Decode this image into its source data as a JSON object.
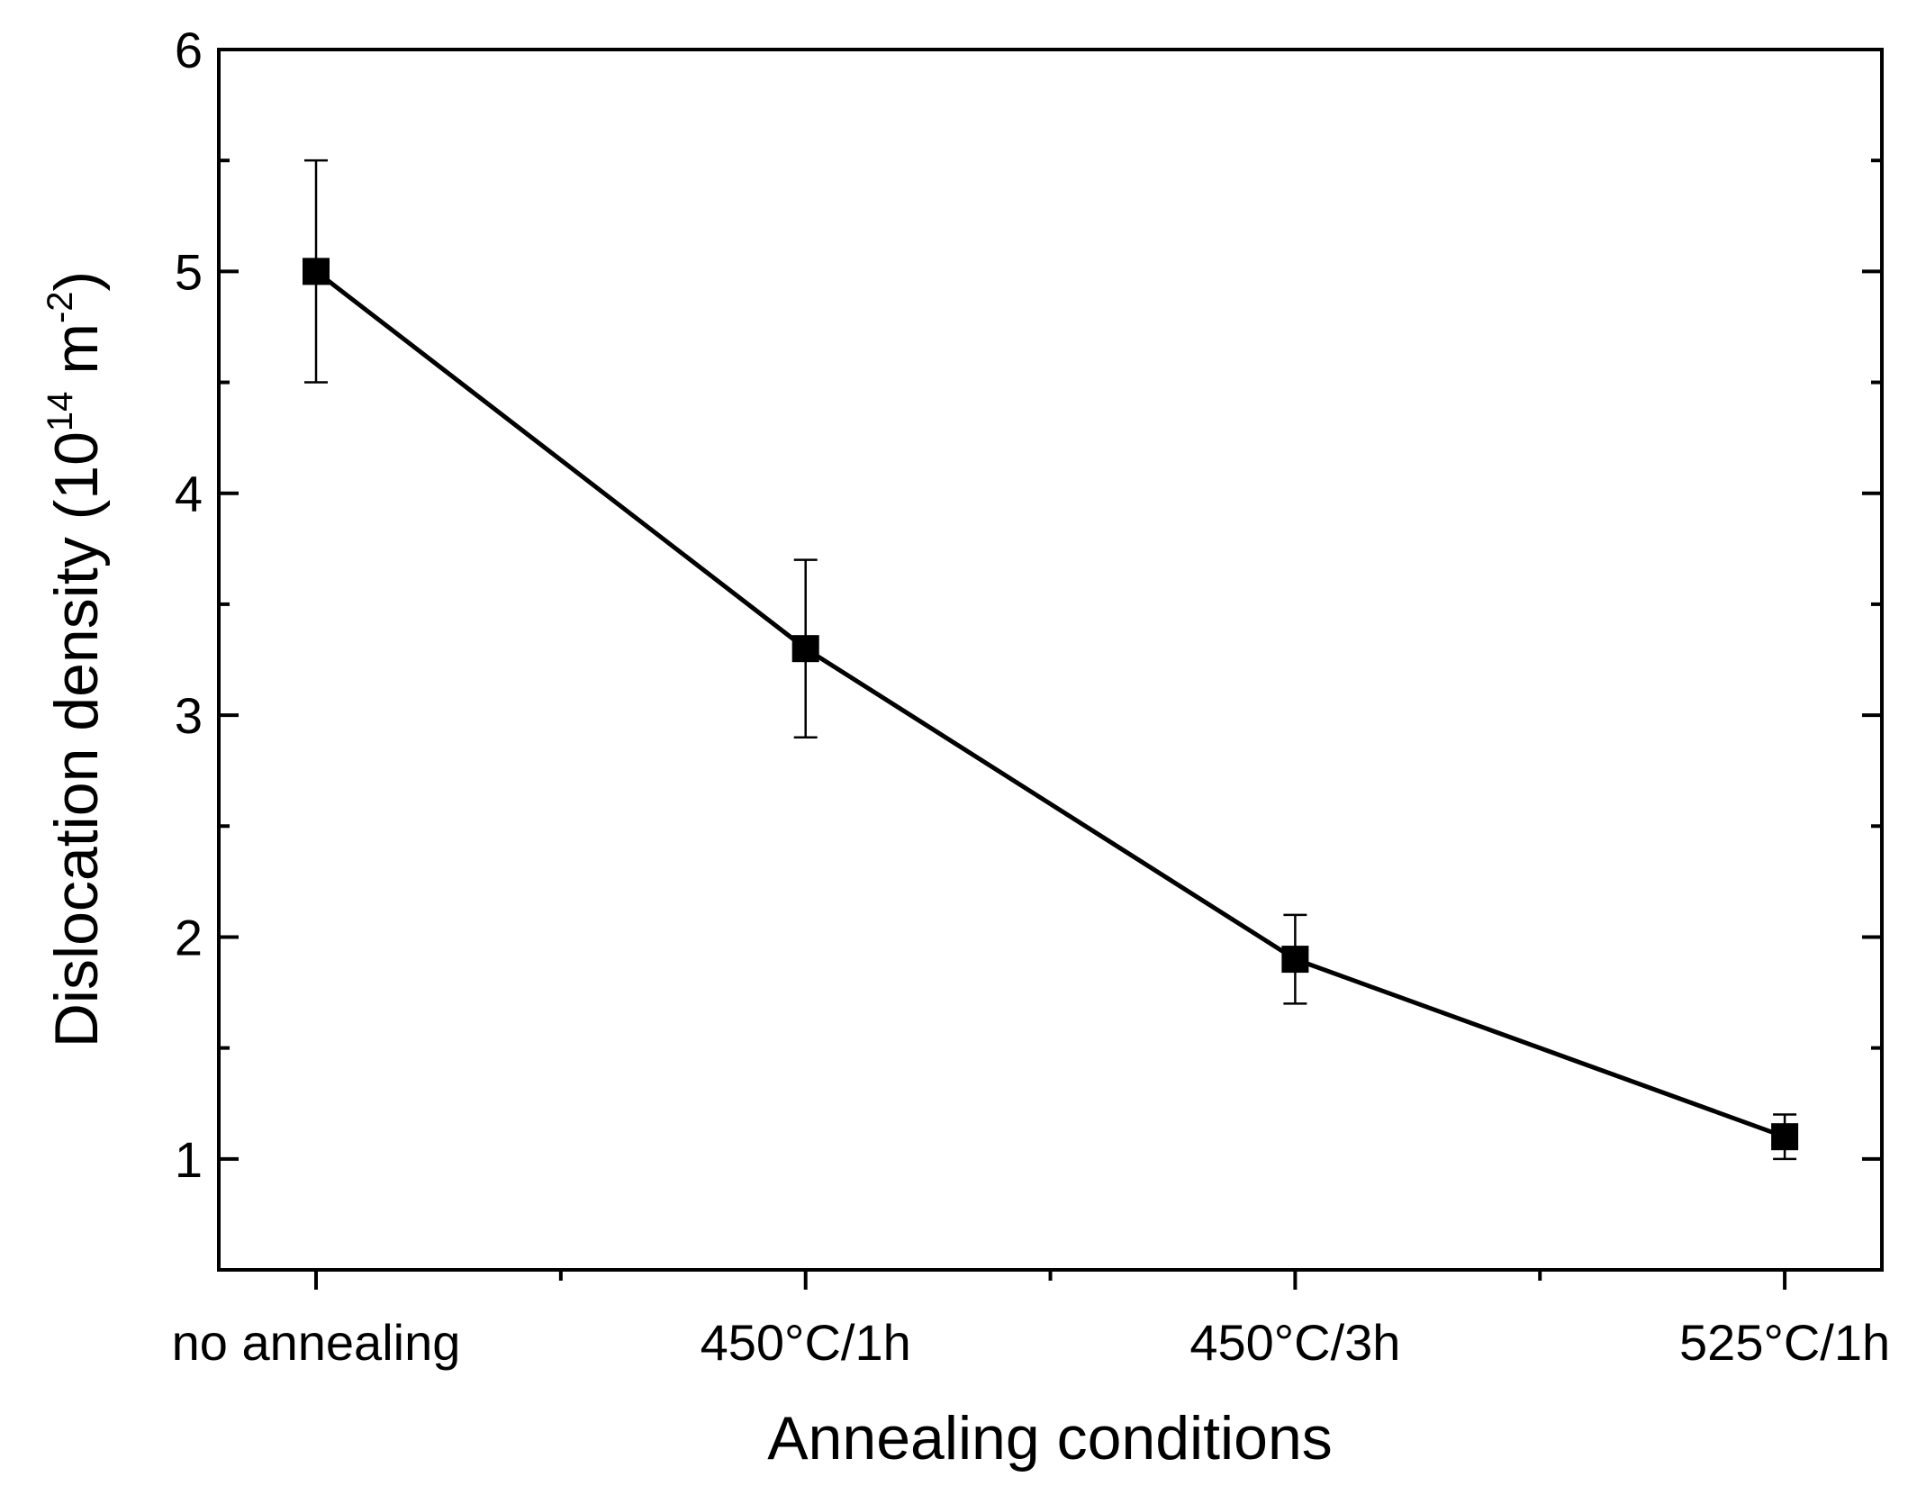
{
  "chart_data": {
    "type": "line",
    "xlabel": "Annealing conditions",
    "ylabel": {
      "prefix": "Dislocation density (10",
      "exp1": "14",
      "mid": " m",
      "exp2": "-2",
      "suffix": ")"
    },
    "categories": [
      "no annealing",
      "450°C/1h",
      "450°C/3h",
      "525°C/1h"
    ],
    "series": [
      {
        "values": [
          5.0,
          3.3,
          1.9,
          1.1
        ],
        "errors": [
          0.5,
          0.4,
          0.2,
          0.1
        ]
      }
    ],
    "ylim": [
      0.5,
      6
    ],
    "yticks": [
      1,
      2,
      3,
      4,
      5,
      6
    ],
    "grid": false,
    "line_color": "#000000",
    "marker": "square"
  }
}
